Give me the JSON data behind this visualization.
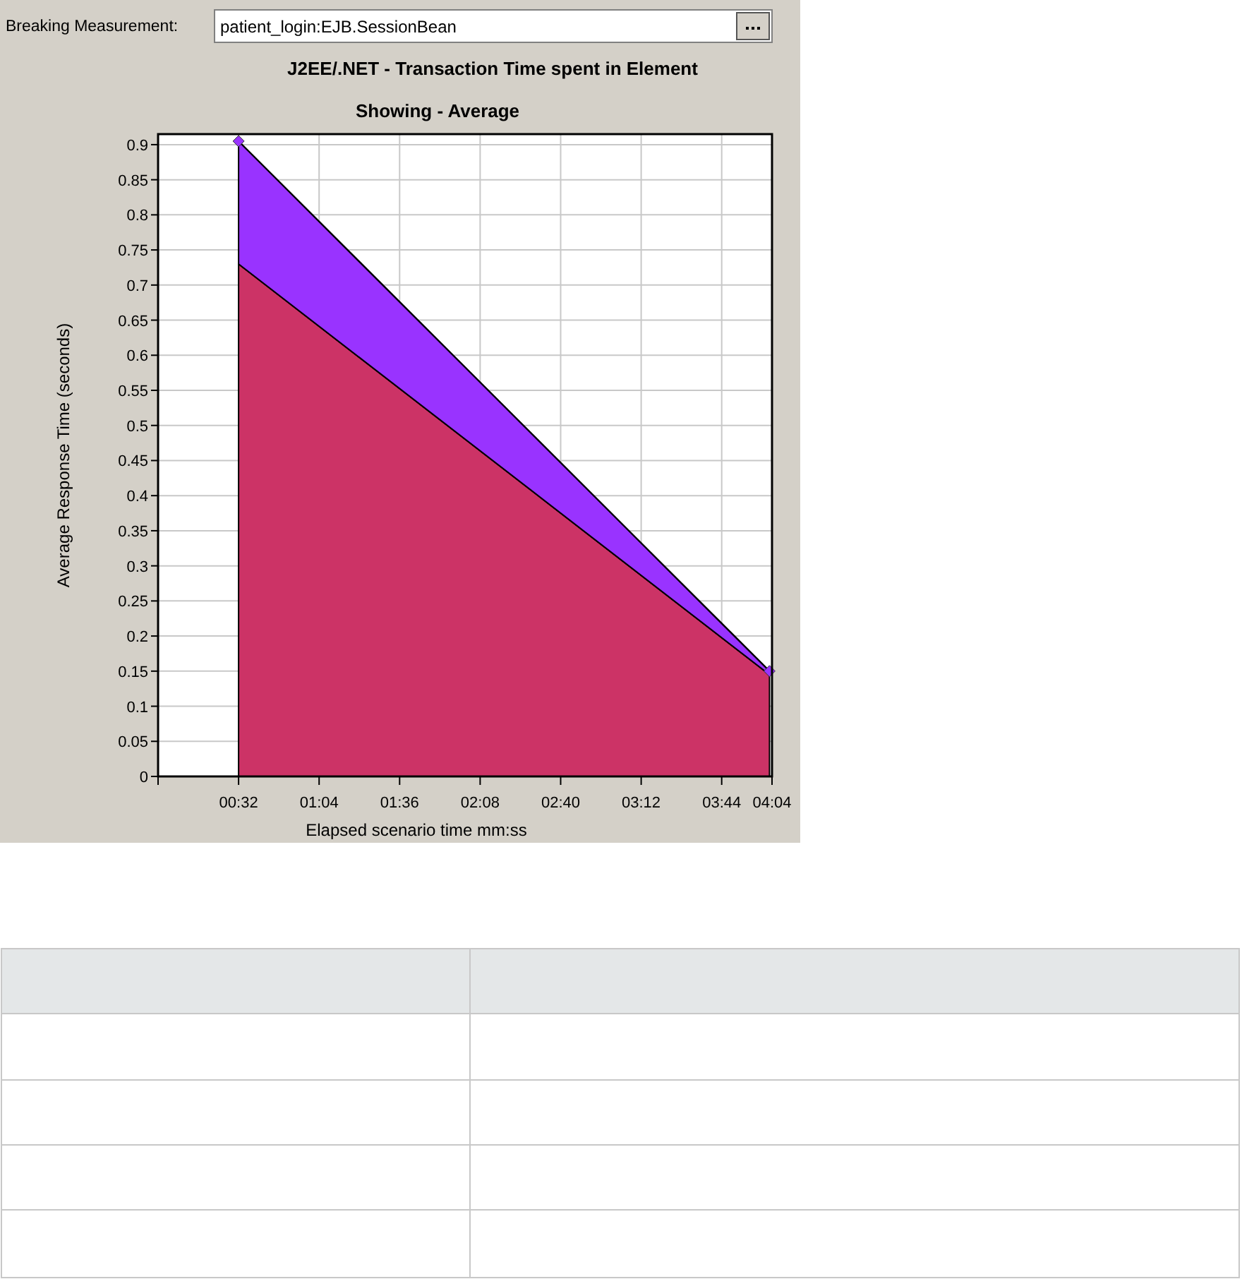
{
  "chart_data": {
    "type": "area",
    "stacked": true,
    "title": "J2EE/.NET - Transaction Time spent in Element",
    "subtitle": "Showing - Average",
    "xlabel": "Elapsed scenario time mm:ss",
    "ylabel": "Average Response Time (seconds)",
    "annotations": [
      "Breaking Measurement:",
      "patient_login:EJB.SessionBean"
    ],
    "x": [
      32,
      243
    ],
    "series": [
      {
        "color": "#cc3366",
        "values": [
          0.73,
          0.145
        ]
      },
      {
        "color": "#9933ff",
        "values": [
          0.175,
          0.005
        ],
        "marker": "diamond"
      }
    ],
    "xlim": [
      0,
      244
    ],
    "xticks": [
      {
        "value": 0,
        "label": null
      },
      {
        "value": 32,
        "label": "00:32"
      },
      {
        "value": 64,
        "label": "01:04"
      },
      {
        "value": 96,
        "label": "01:36"
      },
      {
        "value": 128,
        "label": "02:08"
      },
      {
        "value": 160,
        "label": "02:40"
      },
      {
        "value": 192,
        "label": "03:12"
      },
      {
        "value": 224,
        "label": "03:44"
      },
      {
        "value": 244,
        "label": "04:04"
      }
    ],
    "ylim": [
      0,
      0.915
    ],
    "yticks": [
      0,
      0.05,
      0.1,
      0.15,
      0.2,
      0.25,
      0.3,
      0.35,
      0.4,
      0.45,
      0.5,
      0.55,
      0.6,
      0.65,
      0.7,
      0.75,
      0.8,
      0.85,
      0.9
    ],
    "grid": true
  }
}
